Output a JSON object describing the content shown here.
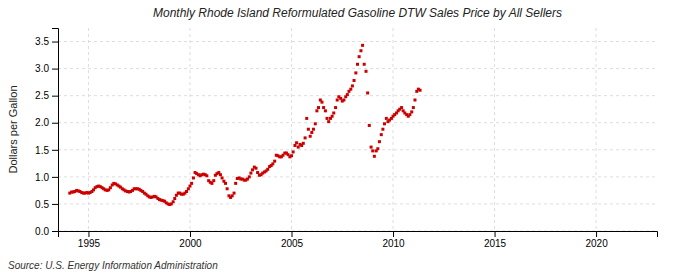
{
  "chart_data": {
    "type": "scatter",
    "title": "Monthly Rhode Island Reformulated Gasoline DTW Sales Price by All Sellers",
    "ylabel": "Dollars per Gallon",
    "annotations": [
      "Source: U.S. Energy Information Administration"
    ],
    "color": "#cc0000",
    "marker": "square",
    "grid": true,
    "xlim": [
      1993.5,
      2023.0
    ],
    "ylim": [
      0.0,
      3.75
    ],
    "xticks": [
      1995,
      2000,
      2005,
      2010,
      2015,
      2020
    ],
    "yticks": [
      {
        "value": 0.0,
        "label": "0.0"
      },
      0.5,
      {
        "value": 1.0,
        "label": "1.0"
      },
      1.5,
      {
        "value": 2.0,
        "label": "2.0"
      },
      2.5,
      {
        "value": 3.0,
        "label": "3.0"
      },
      3.5
    ],
    "x": [
      1994.08,
      1994.17,
      1994.25,
      1994.33,
      1994.42,
      1994.5,
      1994.58,
      1994.67,
      1994.75,
      1994.83,
      1994.92,
      1995.0,
      1995.08,
      1995.17,
      1995.25,
      1995.33,
      1995.42,
      1995.5,
      1995.58,
      1995.67,
      1995.75,
      1995.83,
      1995.92,
      1996.0,
      1996.08,
      1996.17,
      1996.25,
      1996.33,
      1996.42,
      1996.5,
      1996.58,
      1996.67,
      1996.75,
      1996.83,
      1996.92,
      1997.0,
      1997.08,
      1997.17,
      1997.25,
      1997.33,
      1997.42,
      1997.5,
      1997.58,
      1997.67,
      1997.75,
      1997.83,
      1997.92,
      1998.0,
      1998.08,
      1998.17,
      1998.25,
      1998.33,
      1998.42,
      1998.5,
      1998.58,
      1998.67,
      1998.75,
      1998.83,
      1998.92,
      1999.0,
      1999.08,
      1999.17,
      1999.25,
      1999.33,
      1999.42,
      1999.5,
      1999.58,
      1999.67,
      1999.75,
      1999.83,
      1999.92,
      2000.0,
      2000.08,
      2000.17,
      2000.25,
      2000.33,
      2000.42,
      2000.5,
      2000.58,
      2000.67,
      2000.75,
      2000.83,
      2000.92,
      2001.0,
      2001.08,
      2001.17,
      2001.25,
      2001.33,
      2001.42,
      2001.5,
      2001.58,
      2001.67,
      2001.75,
      2001.83,
      2001.92,
      2002.0,
      2002.08,
      2002.17,
      2002.25,
      2002.33,
      2002.42,
      2002.5,
      2002.58,
      2002.67,
      2002.75,
      2002.83,
      2002.92,
      2003.0,
      2003.08,
      2003.17,
      2003.25,
      2003.33,
      2003.42,
      2003.5,
      2003.58,
      2003.67,
      2003.75,
      2003.83,
      2003.92,
      2004.0,
      2004.08,
      2004.17,
      2004.25,
      2004.33,
      2004.42,
      2004.5,
      2004.58,
      2004.67,
      2004.75,
      2004.83,
      2004.92,
      2005.0,
      2005.08,
      2005.17,
      2005.25,
      2005.33,
      2005.42,
      2005.5,
      2005.58,
      2005.67,
      2005.75,
      2005.83,
      2005.92,
      2006.0,
      2006.08,
      2006.17,
      2006.25,
      2006.33,
      2006.42,
      2006.5,
      2006.58,
      2006.67,
      2006.75,
      2006.83,
      2006.92,
      2007.0,
      2007.08,
      2007.17,
      2007.25,
      2007.33,
      2007.42,
      2007.5,
      2007.58,
      2007.67,
      2007.75,
      2007.83,
      2007.92,
      2008.0,
      2008.08,
      2008.17,
      2008.25,
      2008.33,
      2008.42,
      2008.5,
      2008.58,
      2008.67,
      2008.75,
      2008.83,
      2008.92,
      2009.0,
      2009.08,
      2009.17,
      2009.25,
      2009.33,
      2009.42,
      2009.5,
      2009.58,
      2009.67,
      2009.75,
      2009.83,
      2009.92,
      2010.0,
      2010.08,
      2010.17,
      2010.25,
      2010.33,
      2010.42,
      2010.5,
      2010.58,
      2010.67,
      2010.75,
      2010.83,
      2010.92,
      2011.0,
      2011.08,
      2011.17,
      2011.25,
      2011.33
    ],
    "values": [
      0.7,
      0.72,
      0.72,
      0.73,
      0.75,
      0.74,
      0.73,
      0.71,
      0.7,
      0.7,
      0.71,
      0.7,
      0.71,
      0.73,
      0.76,
      0.8,
      0.82,
      0.83,
      0.82,
      0.8,
      0.78,
      0.76,
      0.75,
      0.76,
      0.8,
      0.85,
      0.88,
      0.87,
      0.85,
      0.83,
      0.81,
      0.78,
      0.76,
      0.74,
      0.73,
      0.72,
      0.73,
      0.75,
      0.78,
      0.78,
      0.78,
      0.77,
      0.75,
      0.73,
      0.7,
      0.68,
      0.65,
      0.63,
      0.62,
      0.63,
      0.64,
      0.63,
      0.6,
      0.58,
      0.57,
      0.56,
      0.55,
      0.52,
      0.5,
      0.49,
      0.5,
      0.54,
      0.6,
      0.66,
      0.7,
      0.7,
      0.68,
      0.68,
      0.7,
      0.73,
      0.78,
      0.83,
      0.88,
      0.98,
      1.08,
      1.06,
      1.04,
      1.02,
      1.04,
      1.05,
      1.04,
      1.02,
      0.93,
      0.9,
      0.88,
      0.93,
      1.03,
      1.06,
      1.08,
      1.04,
      0.98,
      0.92,
      0.88,
      0.78,
      0.65,
      0.62,
      0.65,
      0.7,
      0.88,
      0.97,
      0.98,
      0.96,
      0.96,
      0.94,
      0.94,
      0.96,
      1.0,
      1.07,
      1.13,
      1.18,
      1.16,
      1.08,
      1.03,
      1.04,
      1.07,
      1.09,
      1.11,
      1.14,
      1.19,
      1.21,
      1.24,
      1.29,
      1.4,
      1.39,
      1.37,
      1.37,
      1.4,
      1.44,
      1.44,
      1.41,
      1.37,
      1.39,
      1.46,
      1.58,
      1.63,
      1.55,
      1.6,
      1.58,
      1.62,
      1.72,
      2.08,
      1.88,
      1.75,
      1.82,
      1.88,
      1.98,
      2.22,
      2.28,
      2.42,
      2.38,
      2.28,
      2.22,
      2.08,
      2.02,
      2.08,
      2.12,
      2.18,
      2.28,
      2.42,
      2.48,
      2.45,
      2.4,
      2.42,
      2.48,
      2.52,
      2.58,
      2.62,
      2.68,
      2.78,
      2.92,
      3.08,
      3.22,
      3.33,
      3.43,
      3.08,
      2.95,
      2.55,
      1.95,
      1.55,
      1.48,
      1.38,
      1.48,
      1.52,
      1.65,
      1.78,
      1.88,
      1.98,
      2.08,
      2.02,
      2.05,
      2.08,
      2.12,
      2.15,
      2.18,
      2.22,
      2.25,
      2.28,
      2.22,
      2.18,
      2.15,
      2.12,
      2.15,
      2.2,
      2.28,
      2.42,
      2.58,
      2.62,
      2.6
    ]
  }
}
